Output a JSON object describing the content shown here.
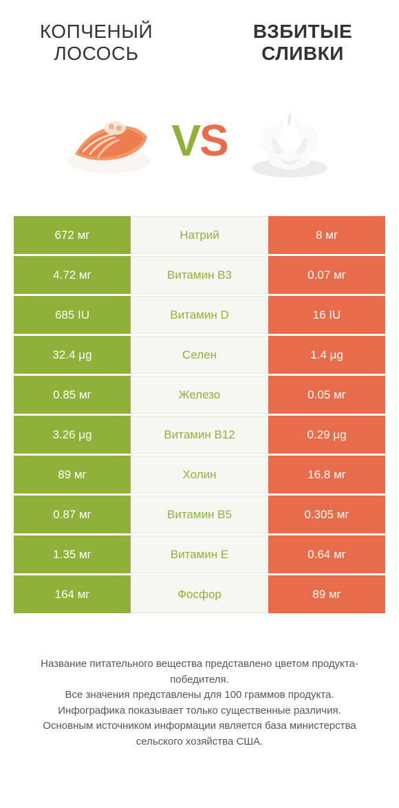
{
  "colors": {
    "green": "#8fb13a",
    "orange": "#e86c4a",
    "green_text": "#8fb13a",
    "orange_text": "#e86c4a",
    "row_mid_bg": "#f7f7f2"
  },
  "left_title": "КОПЧЕНЫЙ ЛОСОСЬ",
  "right_title": "ВЗБИТЫЕ СЛИВКИ",
  "vs": {
    "v": "V",
    "s": "S"
  },
  "rows": [
    {
      "left": "672 мг",
      "label": "Натрий",
      "right": "8 мг",
      "winner": "left"
    },
    {
      "left": "4.72 мг",
      "label": "Витамин B3",
      "right": "0.07 мг",
      "winner": "left"
    },
    {
      "left": "685 IU",
      "label": "Витамин D",
      "right": "16 IU",
      "winner": "left"
    },
    {
      "left": "32.4 µg",
      "label": "Селен",
      "right": "1.4 µg",
      "winner": "left"
    },
    {
      "left": "0.85 мг",
      "label": "Железо",
      "right": "0.05 мг",
      "winner": "left"
    },
    {
      "left": "3.26 µg",
      "label": "Витамин B12",
      "right": "0.29 µg",
      "winner": "left"
    },
    {
      "left": "89 мг",
      "label": "Холин",
      "right": "16.8 мг",
      "winner": "left"
    },
    {
      "left": "0.87 мг",
      "label": "Витамин B5",
      "right": "0.305 мг",
      "winner": "left"
    },
    {
      "left": "1.35 мг",
      "label": "Витамин E",
      "right": "0.64 мг",
      "winner": "left"
    },
    {
      "left": "164 мг",
      "label": "Фосфор",
      "right": "89 мг",
      "winner": "left"
    }
  ],
  "footer": "Название питательного вещества представлено цветом продукта-победителя.\nВсе значения представлены для 100 граммов продукта.\nИнфографика показывает только существенные различия.\nОсновным источником информации является база министерства сельского хозяйства США."
}
